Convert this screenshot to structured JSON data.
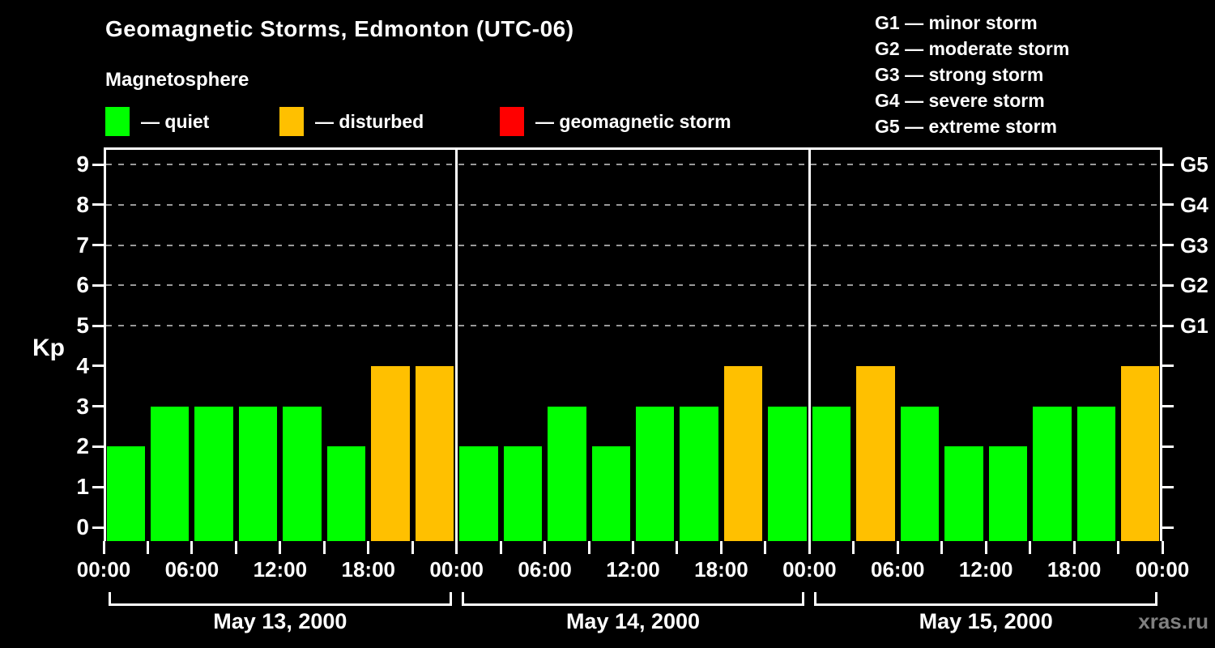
{
  "title": "Geomagnetic Storms, Edmonton (UTC-06)",
  "subtitle": "Magnetosphere",
  "legend": {
    "items": [
      {
        "name": "quiet",
        "label": "— quiet",
        "color": "#00ff00"
      },
      {
        "name": "disturbed",
        "label": "— disturbed",
        "color": "#ffc000"
      },
      {
        "name": "storm",
        "label": "— geomagnetic storm",
        "color": "#ff0000"
      }
    ]
  },
  "storm_scale": [
    "G1 — minor storm",
    "G2 — moderate storm",
    "G3 — strong storm",
    "G4 — severe storm",
    "G5 — extreme storm"
  ],
  "watermark": "xras.ru",
  "chart_data": {
    "type": "bar",
    "title": "Geomagnetic Storms, Edmonton (UTC-06)",
    "ylabel": "Kp",
    "ylim": [
      0,
      9
    ],
    "yticks": [
      0,
      1,
      2,
      3,
      4,
      5,
      6,
      7,
      8,
      9
    ],
    "grid_levels_kp": [
      5,
      6,
      7,
      8,
      9
    ],
    "grid_style": "dashed",
    "legend_position": "top",
    "right_axis": [
      {
        "label": "G1",
        "kp": 5
      },
      {
        "label": "G2",
        "kp": 6
      },
      {
        "label": "G3",
        "kp": 7
      },
      {
        "label": "G4",
        "kp": 8
      },
      {
        "label": "G5",
        "kp": 9
      }
    ],
    "x_tick_label_cycle": [
      "00:00",
      "06:00",
      "12:00",
      "18:00"
    ],
    "hours_per_bar": 3,
    "bars_per_day": 8,
    "days": [
      {
        "date": "May 13, 2000",
        "values": [
          2,
          3,
          3,
          3,
          3,
          2,
          4,
          4
        ]
      },
      {
        "date": "May 14, 2000",
        "values": [
          2,
          2,
          3,
          2,
          3,
          3,
          4,
          3
        ]
      },
      {
        "date": "May 15, 2000",
        "values": [
          3,
          4,
          3,
          2,
          2,
          3,
          3,
          4
        ]
      }
    ],
    "colors": {
      "quiet": "#00ff00",
      "disturbed": "#ffc000",
      "storm": "#ff0000",
      "grid": "#999999",
      "axis": "#ffffff",
      "background": "#000000"
    },
    "color_rule": {
      "quiet_kp_max": 3,
      "disturbed_kp_max": 4,
      "storm_kp_min": 5
    }
  }
}
